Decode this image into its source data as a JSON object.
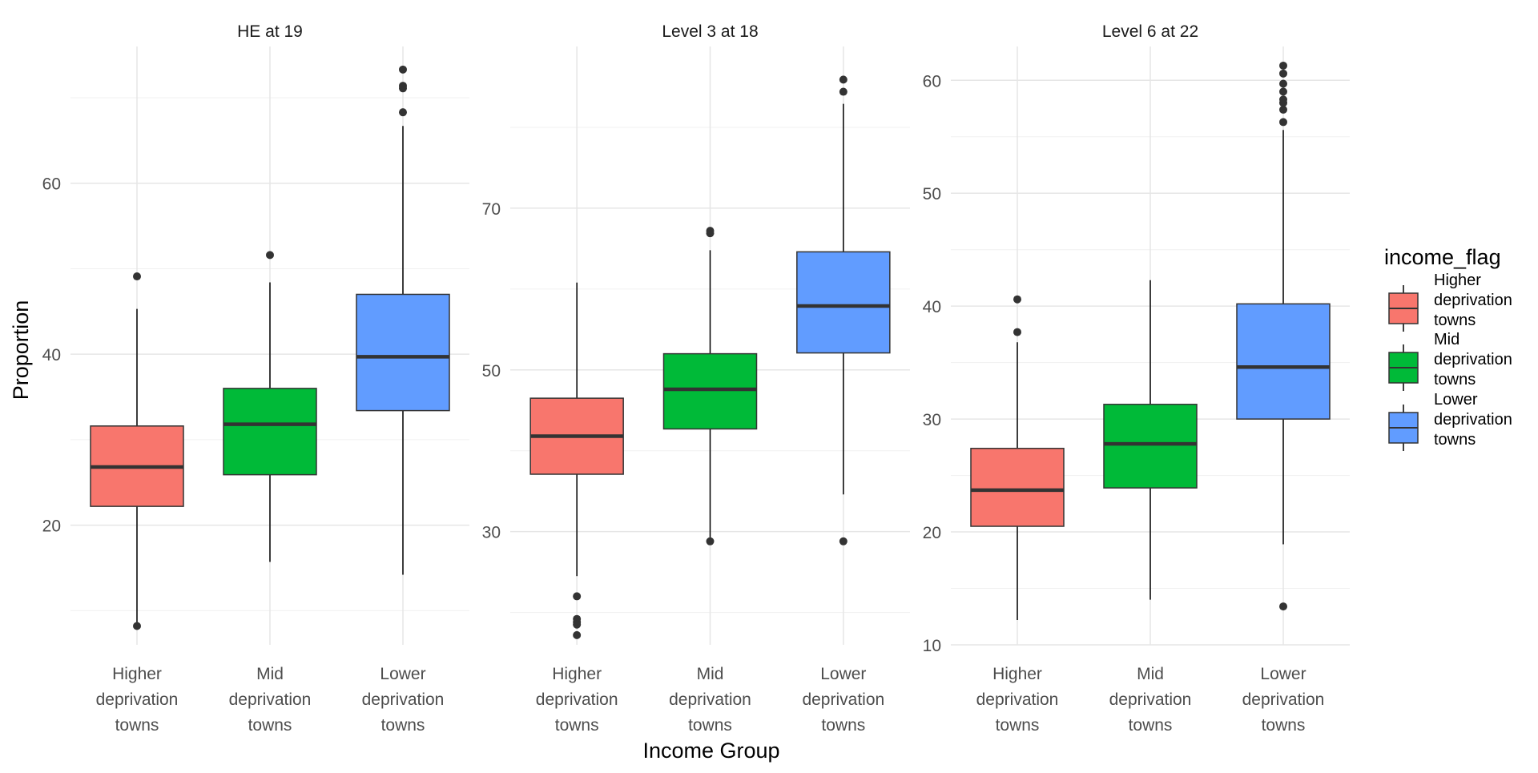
{
  "chart_data": {
    "type": "boxplot",
    "xlabel": "Income Group",
    "ylabel": "Proportion",
    "categories": [
      "Higher\ndeprivation\ntowns",
      "Mid\ndeprivation\ntowns",
      "Lower\ndeprivation\ntowns"
    ],
    "legend": {
      "title": "income_flag",
      "position": "right",
      "entries": [
        {
          "label": "Higher\ndeprivation\ntowns",
          "color": "#F8766D"
        },
        {
          "label": "Mid\ndeprivation\ntowns",
          "color": "#00BA38"
        },
        {
          "label": "Lower\ndeprivation\ntowns",
          "color": "#619CFF"
        }
      ]
    },
    "grid": true,
    "panels": [
      {
        "title": "HE at 19",
        "ylim": [
          6,
          76
        ],
        "major_ticks": [
          20,
          40,
          60
        ],
        "minor_ticks": [
          10,
          30,
          50,
          70
        ],
        "boxes": [
          {
            "category": "Higher deprivation towns",
            "color": "#F8766D",
            "whisker_low": 8.2,
            "q1": 22.2,
            "median": 26.8,
            "q3": 31.6,
            "whisker_high": 45.3,
            "outliers": [
              49.1,
              8.2
            ]
          },
          {
            "category": "Mid deprivation towns",
            "color": "#00BA38",
            "whisker_low": 15.7,
            "q1": 25.9,
            "median": 31.8,
            "q3": 36.0,
            "whisker_high": 48.4,
            "outliers": [
              51.6
            ]
          },
          {
            "category": "Lower deprivation towns",
            "color": "#619CFF",
            "whisker_low": 14.2,
            "q1": 33.4,
            "median": 39.7,
            "q3": 47.0,
            "whisker_high": 66.7,
            "outliers": [
              68.3,
              71.1,
              71.4,
              73.3
            ]
          }
        ]
      },
      {
        "title": "Level 3 at 18",
        "ylim": [
          16,
          90
        ],
        "major_ticks": [
          30,
          50,
          70
        ],
        "minor_ticks": [
          20,
          40,
          60,
          80
        ],
        "boxes": [
          {
            "category": "Higher deprivation towns",
            "color": "#F8766D",
            "whisker_low": 24.5,
            "q1": 37.1,
            "median": 41.8,
            "q3": 46.5,
            "whisker_high": 60.8,
            "outliers": [
              22.0,
              19.2,
              18.8,
              18.5,
              17.2
            ]
          },
          {
            "category": "Mid deprivation towns",
            "color": "#00BA38",
            "whisker_low": 28.8,
            "q1": 42.7,
            "median": 47.6,
            "q3": 52.0,
            "whisker_high": 64.8,
            "outliers": [
              66.9,
              67.2,
              28.8
            ]
          },
          {
            "category": "Lower deprivation towns",
            "color": "#619CFF",
            "whisker_low": 34.6,
            "q1": 52.1,
            "median": 57.9,
            "q3": 64.6,
            "whisker_high": 82.9,
            "outliers": [
              84.4,
              85.9,
              28.8
            ]
          }
        ]
      },
      {
        "title": "Level 6 at 22",
        "ylim": [
          10,
          63
        ],
        "major_ticks": [
          10,
          20,
          30,
          40,
          50,
          60
        ],
        "minor_ticks": [
          15,
          25,
          35,
          45,
          55
        ],
        "boxes": [
          {
            "category": "Higher deprivation towns",
            "color": "#F8766D",
            "whisker_low": 12.2,
            "q1": 20.5,
            "median": 23.7,
            "q3": 27.4,
            "whisker_high": 36.8,
            "outliers": [
              37.7,
              40.6
            ]
          },
          {
            "category": "Mid deprivation towns",
            "color": "#00BA38",
            "whisker_low": 14.0,
            "q1": 23.9,
            "median": 27.8,
            "q3": 31.3,
            "whisker_high": 42.3,
            "outliers": []
          },
          {
            "category": "Lower deprivation towns",
            "color": "#619CFF",
            "whisker_low": 18.9,
            "q1": 30.0,
            "median": 34.6,
            "q3": 40.2,
            "whisker_high": 55.6,
            "outliers": [
              56.3,
              57.4,
              58.0,
              58.3,
              59.0,
              59.7,
              60.6,
              61.3,
              13.4
            ]
          }
        ]
      }
    ]
  }
}
